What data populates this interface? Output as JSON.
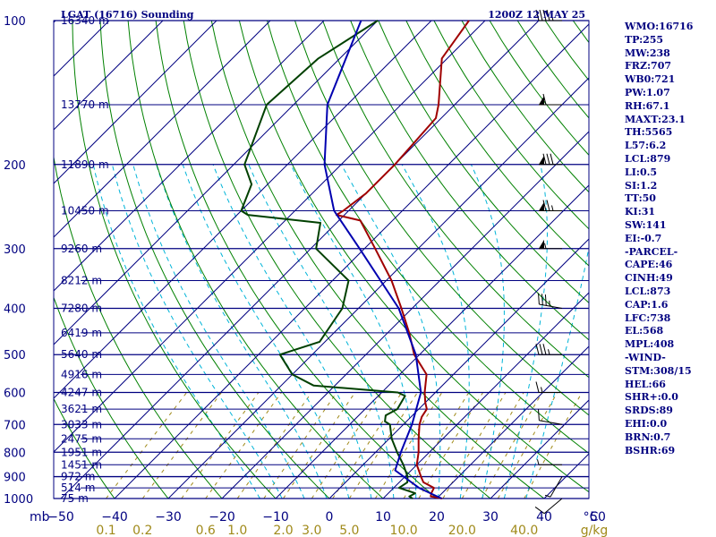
{
  "header": {
    "title_left": "LGAT (16716) Sounding",
    "title_right": "1200Z 12 MAY 25"
  },
  "indices": [
    "WMO:16716",
    "TP:255",
    "MW:238",
    "FRZ:707",
    "WB0:721",
    "PW:1.07",
    "RH:67.1",
    "MAXT:23.1",
    "TH:5565",
    "L57:6.2",
    "LCL:879",
    "LI:0.5",
    "SI:1.2",
    "TT:50",
    "KI:31",
    "SW:141",
    "EI:-0.7",
    "-PARCEL-",
    "CAPE:46",
    "CINH:49",
    "LCL:873",
    "CAP:1.6",
    "LFC:738",
    "EL:568",
    "MPL:408",
    "-WIND-",
    "STM:308/15",
    "HEL:66",
    "SHR+:0.0",
    "SRDS:89",
    "EHI:0.0",
    "BRN:0.7",
    "BSHR:69"
  ],
  "colors": {
    "isobar": "#000080",
    "isotherm": "#000080",
    "dry_adiabat": "#008000",
    "moist_adiabat": "#00b4d8",
    "mixing_ratio": "#a08a1a",
    "temperature": "#a00000",
    "dewpoint": "#004000",
    "parcel": "#0000b0",
    "wind": "#000000"
  },
  "chart_data": {
    "type": "skew-t",
    "x_label": "°C",
    "y_label": "mb",
    "mixing_ratio_label": "g/kg",
    "pressure_levels": [
      100,
      200,
      300,
      400,
      500,
      600,
      700,
      800,
      900,
      1000
    ],
    "temperature_ticks": [
      -50,
      -40,
      -30,
      -20,
      -10,
      0,
      10,
      20,
      30,
      40,
      50
    ],
    "temperature_tick_labels": [
      "−50",
      "−40",
      "−30",
      "−20",
      "−10",
      "0",
      "10",
      "20",
      "30",
      "40",
      "50"
    ],
    "mixing_ratio_ticks": [
      {
        "label": "0.1",
        "value": 0.1
      },
      {
        "label": "0.2",
        "value": 0.2
      },
      {
        "label": "0.6",
        "value": 0.6
      },
      {
        "label": "1.0",
        "value": 1.0
      },
      {
        "label": "2.0",
        "value": 2.0
      },
      {
        "label": "3.0",
        "value": 3.0
      },
      {
        "label": "5.0",
        "value": 5.0
      },
      {
        "label": "10.0",
        "value": 10.0
      },
      {
        "label": "20.0",
        "value": 20.0
      },
      {
        "label": "40.0",
        "value": 40.0
      }
    ],
    "heights": [
      {
        "p": 100,
        "label": "16340 m"
      },
      {
        "p": 150,
        "label": "13770 m"
      },
      {
        "p": 200,
        "label": "11890 m"
      },
      {
        "p": 250,
        "label": "10450 m"
      },
      {
        "p": 300,
        "label": "9260 m"
      },
      {
        "p": 350,
        "label": "8212 m"
      },
      {
        "p": 400,
        "label": "7280 m"
      },
      {
        "p": 450,
        "label": "6419 m"
      },
      {
        "p": 500,
        "label": "5640 m"
      },
      {
        "p": 550,
        "label": "4916 m"
      },
      {
        "p": 600,
        "label": "4247 m"
      },
      {
        "p": 650,
        "label": "3621 m"
      },
      {
        "p": 700,
        "label": "3033 m"
      },
      {
        "p": 750,
        "label": "2475 m"
      },
      {
        "p": 800,
        "label": "1951 m"
      },
      {
        "p": 850,
        "label": "1451 m"
      },
      {
        "p": 900,
        "label": "972 m"
      },
      {
        "p": 950,
        "label": "514 m"
      },
      {
        "p": 1000,
        "label": "75 m"
      }
    ],
    "series": [
      {
        "kind": "temperature",
        "points": [
          [
            1005,
            21.5
          ],
          [
            1000,
            21.0
          ],
          [
            990,
            18.5
          ],
          [
            975,
            18.0
          ],
          [
            950,
            17.5
          ],
          [
            925,
            14.5
          ],
          [
            900,
            13.0
          ],
          [
            850,
            10.0
          ],
          [
            800,
            8.0
          ],
          [
            750,
            5.5
          ],
          [
            700,
            3.0
          ],
          [
            675,
            2.0
          ],
          [
            650,
            1.5
          ],
          [
            630,
            0.0
          ],
          [
            600,
            -2.0
          ],
          [
            550,
            -5.0
          ],
          [
            500,
            -11.0
          ],
          [
            450,
            -16.0
          ],
          [
            400,
            -22.0
          ],
          [
            350,
            -29.0
          ],
          [
            300,
            -38.0
          ],
          [
            262,
            -46.0
          ],
          [
            255,
            -51.5
          ],
          [
            250,
            -51.0
          ],
          [
            230,
            -50.0
          ],
          [
            200,
            -50.0
          ],
          [
            160,
            -51.0
          ],
          [
            150,
            -53.0
          ],
          [
            120,
            -61.0
          ],
          [
            100,
            -63.0
          ]
        ]
      },
      {
        "kind": "dewpoint",
        "points": [
          [
            1005,
            16.0
          ],
          [
            1000,
            15.5
          ],
          [
            990,
            14.5
          ],
          [
            975,
            15.0
          ],
          [
            950,
            11.0
          ],
          [
            925,
            11.5
          ],
          [
            900,
            10.5
          ],
          [
            850,
            7.5
          ],
          [
            800,
            4.0
          ],
          [
            750,
            0.5
          ],
          [
            700,
            -2.5
          ],
          [
            690,
            -4.0
          ],
          [
            670,
            -5.0
          ],
          [
            650,
            -4.0
          ],
          [
            610,
            -5.0
          ],
          [
            600,
            -7.0
          ],
          [
            580,
            -24.0
          ],
          [
            550,
            -30.0
          ],
          [
            500,
            -36.0
          ],
          [
            470,
            -31.0
          ],
          [
            400,
            -33.0
          ],
          [
            350,
            -37.0
          ],
          [
            300,
            -49.0
          ],
          [
            265,
            -53.0
          ],
          [
            255,
            -68.0
          ],
          [
            250,
            -70.0
          ],
          [
            220,
            -73.0
          ],
          [
            200,
            -78.0
          ],
          [
            150,
            -85.0
          ],
          [
            120,
            -84.0
          ],
          [
            100,
            -80.0
          ]
        ]
      },
      {
        "kind": "parcel",
        "points": [
          [
            1005,
            21.5
          ],
          [
            950,
            14.7
          ],
          [
            873,
            7.0
          ],
          [
            800,
            4.7
          ],
          [
            700,
            1.6
          ],
          [
            600,
            -2.7
          ],
          [
            500,
            -10.7
          ],
          [
            400,
            -22.5
          ],
          [
            300,
            -40.9
          ],
          [
            250,
            -52.7
          ],
          [
            200,
            -63.1
          ],
          [
            150,
            -73.7
          ],
          [
            100,
            -83.1
          ]
        ]
      }
    ],
    "winds": [
      {
        "p": 1000,
        "dir": 230,
        "kt": 10
      },
      {
        "p": 900,
        "dir": 210,
        "kt": 5
      },
      {
        "p": 850,
        "dir": 270,
        "kt": 5
      },
      {
        "p": 700,
        "dir": 280,
        "kt": 10
      },
      {
        "p": 600,
        "dir": 270,
        "kt": 15
      },
      {
        "p": 500,
        "dir": 270,
        "kt": 35
      },
      {
        "p": 400,
        "dir": 280,
        "kt": 35
      },
      {
        "p": 300,
        "dir": 270,
        "kt": 55
      },
      {
        "p": 250,
        "dir": 270,
        "kt": 75
      },
      {
        "p": 200,
        "dir": 270,
        "kt": 80
      },
      {
        "p": 150,
        "dir": 270,
        "kt": 60
      },
      {
        "p": 100,
        "dir": 270,
        "kt": 45
      }
    ]
  }
}
